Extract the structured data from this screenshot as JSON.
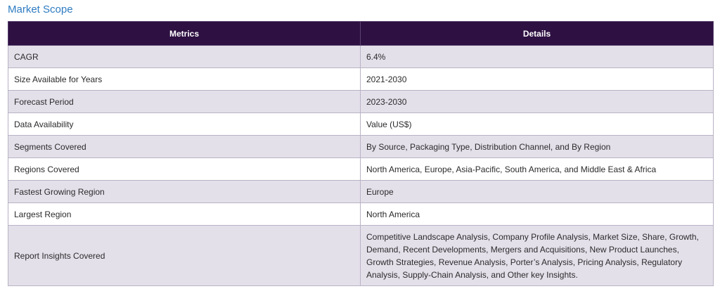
{
  "section": {
    "title": "Market Scope"
  },
  "table": {
    "headers": {
      "metrics": "Metrics",
      "details": "Details"
    },
    "rows": [
      {
        "metric": "CAGR",
        "detail": "6.4%"
      },
      {
        "metric": "Size Available for Years",
        "detail": "2021-2030"
      },
      {
        "metric": "Forecast Period",
        "detail": "2023-2030"
      },
      {
        "metric": "Data Availability",
        "detail": "Value (US$)"
      },
      {
        "metric": "Segments Covered",
        "detail": "By Source, Packaging Type, Distribution Channel, and By Region"
      },
      {
        "metric": "Regions Covered",
        "detail": "North America, Europe, Asia-Pacific, South America, and Middle East & Africa"
      },
      {
        "metric": "Fastest Growing Region",
        "detail": "Europe"
      },
      {
        "metric": "Largest Region",
        "detail": "North America"
      },
      {
        "metric": "Report Insights Covered",
        "detail": "Competitive Landscape Analysis, Company Profile Analysis, Market Size, Share, Growth, Demand, Recent Developments, Mergers and Acquisitions, New Product Launches, Growth Strategies, Revenue Analysis, Porter’s Analysis, Pricing Analysis, Regulatory Analysis, Supply-Chain Analysis, and Other key Insights."
      }
    ]
  },
  "colors": {
    "title": "#2e7cc1",
    "header_background": "#2e1042",
    "shaded_row": "#e4e0ea"
  }
}
